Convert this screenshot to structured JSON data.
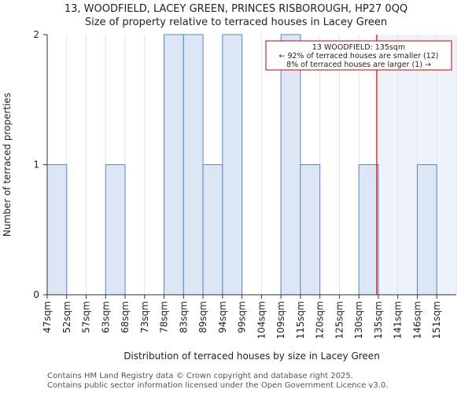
{
  "title_line1": "13, WOODFIELD, LACEY GREEN, PRINCES RISBOROUGH, HP27 0QQ",
  "title_line2": "Size of property relative to terraced houses in Lacey Green",
  "footer_line1": "Contains HM Land Registry data © Crown copyright and database right 2025.",
  "footer_line2": "Contains public sector information licensed under the Open Government Licence v3.0.",
  "colors": {
    "bar_fill": "#dce6f4",
    "bar_stroke": "#5b86c7",
    "highlight_fill": "#eef3fb",
    "marker_line": "#cc0000",
    "annotation_border": "#cc0000"
  },
  "chart_data": {
    "type": "bar",
    "title": "Size of property relative to terraced houses in Lacey Green",
    "xlabel": "Distribution of terraced houses by size in Lacey Green",
    "ylabel": "Number of terraced properties",
    "categories": [
      "47sqm",
      "52sqm",
      "57sqm",
      "63sqm",
      "68sqm",
      "73sqm",
      "78sqm",
      "83sqm",
      "89sqm",
      "94sqm",
      "99sqm",
      "104sqm",
      "109sqm",
      "115sqm",
      "120sqm",
      "125sqm",
      "130sqm",
      "135sqm",
      "141sqm",
      "146sqm",
      "151sqm"
    ],
    "values": [
      1,
      0,
      0,
      1,
      0,
      0,
      2,
      2,
      1,
      2,
      0,
      0,
      2,
      1,
      0,
      0,
      1,
      0,
      0,
      1,
      0
    ],
    "ylim": [
      0,
      2
    ],
    "yticks": [
      "0",
      "1",
      "2"
    ],
    "property_marker": {
      "value_sqm": 135,
      "label_line1": "13 WOODFIELD: 135sqm",
      "label_line2": "← 92% of terraced houses are smaller (12)",
      "label_line3": "8% of terraced houses are larger (1) →"
    }
  }
}
